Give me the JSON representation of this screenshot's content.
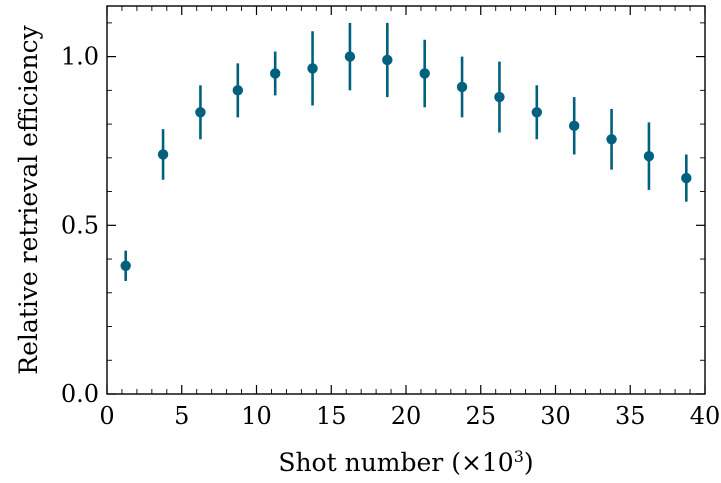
{
  "chart_data": {
    "type": "scatter",
    "title": "",
    "xlabel": "Shot number (×10",
    "xlabel_superscript": "3",
    "xlabel_suffix": ")",
    "ylabel": "Relative retrieval efficiency",
    "xlim": [
      0,
      40
    ],
    "ylim": [
      0,
      1.15
    ],
    "x_ticks": [
      0,
      5,
      10,
      15,
      20,
      25,
      30,
      35,
      40
    ],
    "x_tick_labels": [
      "0",
      "5",
      "10",
      "15",
      "20",
      "25",
      "30",
      "35",
      "40"
    ],
    "y_ticks": [
      0.0,
      0.5,
      1.0
    ],
    "y_tick_labels": [
      "0.0",
      "0.5",
      "1.0"
    ],
    "x_minor_step": 1,
    "y_minor_step": 0.1,
    "grid": false,
    "color": "#00617f",
    "series": [
      {
        "name": "",
        "x": [
          1.25,
          3.75,
          6.25,
          8.75,
          11.25,
          13.75,
          16.25,
          18.75,
          21.25,
          23.75,
          26.25,
          28.75,
          31.25,
          33.75,
          36.25,
          38.75
        ],
        "y": [
          0.38,
          0.71,
          0.835,
          0.9,
          0.95,
          0.965,
          1.0,
          0.99,
          0.95,
          0.91,
          0.88,
          0.835,
          0.795,
          0.755,
          0.705,
          0.64
        ],
        "yerr": [
          0.045,
          0.075,
          0.08,
          0.08,
          0.065,
          0.11,
          0.1,
          0.11,
          0.1,
          0.09,
          0.105,
          0.08,
          0.085,
          0.09,
          0.1,
          0.07
        ]
      }
    ]
  }
}
